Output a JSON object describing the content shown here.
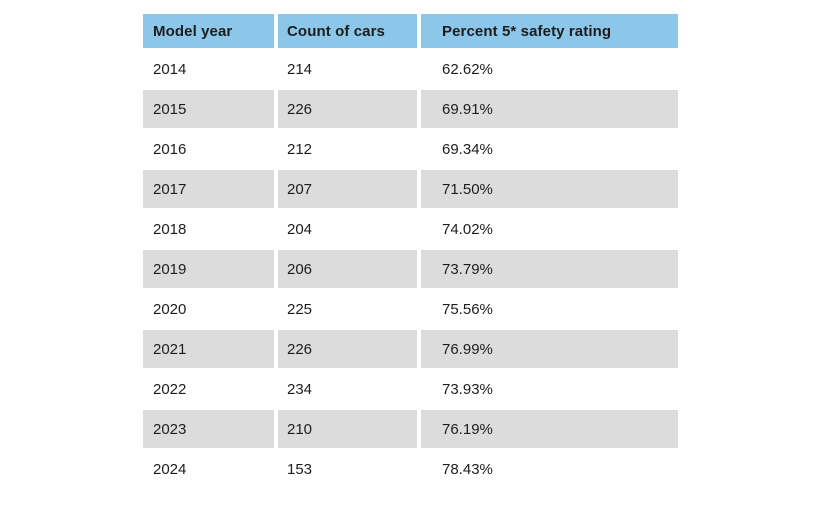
{
  "colors": {
    "header_bg": "#8cc6e8",
    "row_alt_bg": "#dcdcdc",
    "text": "#1d1d1d",
    "page_bg": "#ffffff"
  },
  "chart_data": {
    "type": "table",
    "title": "",
    "columns": [
      "Model year",
      "Count of cars",
      "Percent 5* safety rating"
    ],
    "rows": [
      [
        "2014",
        "214",
        "62.62%"
      ],
      [
        "2015",
        "226",
        "69.91%"
      ],
      [
        "2016",
        "212",
        "69.34%"
      ],
      [
        "2017",
        "207",
        "71.50%"
      ],
      [
        "2018",
        "204",
        "74.02%"
      ],
      [
        "2019",
        "206",
        "73.79%"
      ],
      [
        "2020",
        "225",
        "75.56%"
      ],
      [
        "2021",
        "226",
        "76.99%"
      ],
      [
        "2022",
        "234",
        "73.93%"
      ],
      [
        "2023",
        "210",
        "76.19%"
      ],
      [
        "2024",
        "153",
        "78.43%"
      ]
    ],
    "model_years": [
      2014,
      2015,
      2016,
      2017,
      2018,
      2019,
      2020,
      2021,
      2022,
      2023,
      2024
    ],
    "count_of_cars": [
      214,
      226,
      212,
      207,
      204,
      206,
      225,
      226,
      234,
      210,
      153
    ],
    "percent_5_star_safety_rating": [
      62.62,
      69.91,
      69.34,
      71.5,
      74.02,
      73.79,
      75.56,
      76.99,
      73.93,
      76.19,
      78.43
    ],
    "layout_hints": {
      "header_style": "blue banner",
      "zebra_striping": "odd data rows white, even data rows gray",
      "column_gutters": "white vertical gaps between columns"
    }
  }
}
